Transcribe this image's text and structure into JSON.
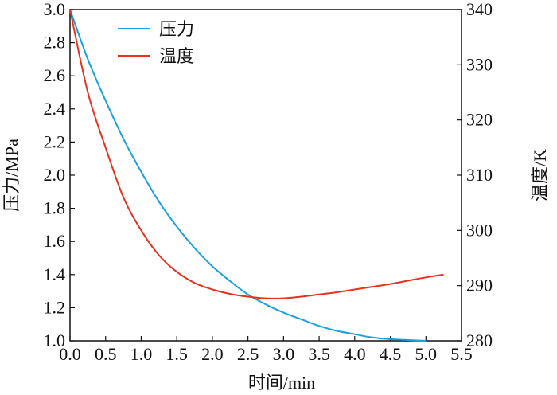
{
  "chart_data": {
    "type": "line",
    "xlabel": "时间/min",
    "ylabel_left": "压力/MPa",
    "ylabel_right": "温度/K",
    "xlim": [
      0.0,
      5.5
    ],
    "ylim_left": [
      1.0,
      3.0
    ],
    "ylim_right": [
      280,
      340
    ],
    "x_ticks": [
      "0.0",
      "0.5",
      "1.0",
      "1.5",
      "2.0",
      "2.5",
      "3.0",
      "3.5",
      "4.0",
      "4.5",
      "5.0",
      "5.5"
    ],
    "y_left_ticks": [
      "1.0",
      "1.2",
      "1.4",
      "1.6",
      "1.8",
      "2.0",
      "2.2",
      "2.4",
      "2.6",
      "2.8",
      "3.0"
    ],
    "y_right_ticks": [
      "280",
      "290",
      "300",
      "310",
      "320",
      "330",
      "340"
    ],
    "grid": false,
    "legend_position": "top-left",
    "series": [
      {
        "name": "压力",
        "axis": "left",
        "color": "#1a9fe0",
        "x": [
          0.0,
          0.25,
          0.5,
          0.75,
          1.0,
          1.25,
          1.5,
          1.75,
          2.0,
          2.25,
          2.5,
          2.75,
          3.0,
          3.25,
          3.5,
          3.75,
          4.0,
          4.25,
          4.5,
          4.75,
          5.0
        ],
        "y": [
          3.0,
          2.7,
          2.45,
          2.22,
          2.02,
          1.84,
          1.69,
          1.56,
          1.45,
          1.36,
          1.28,
          1.22,
          1.17,
          1.13,
          1.09,
          1.06,
          1.04,
          1.02,
          1.01,
          1.005,
          1.0
        ]
      },
      {
        "name": "温度",
        "axis": "right",
        "color": "#e8321e",
        "x": [
          0.0,
          0.25,
          0.5,
          0.75,
          1.0,
          1.25,
          1.5,
          1.75,
          2.0,
          2.25,
          2.5,
          2.75,
          3.0,
          3.25,
          3.5,
          3.75,
          4.0,
          4.25,
          4.5,
          4.75,
          5.0,
          5.25
        ],
        "y": [
          340,
          325,
          315,
          306,
          300,
          295.5,
          292.5,
          290.5,
          289.3,
          288.5,
          288.0,
          287.7,
          287.7,
          288.0,
          288.4,
          288.8,
          289.3,
          289.8,
          290.3,
          290.9,
          291.5,
          292.0
        ]
      }
    ]
  }
}
